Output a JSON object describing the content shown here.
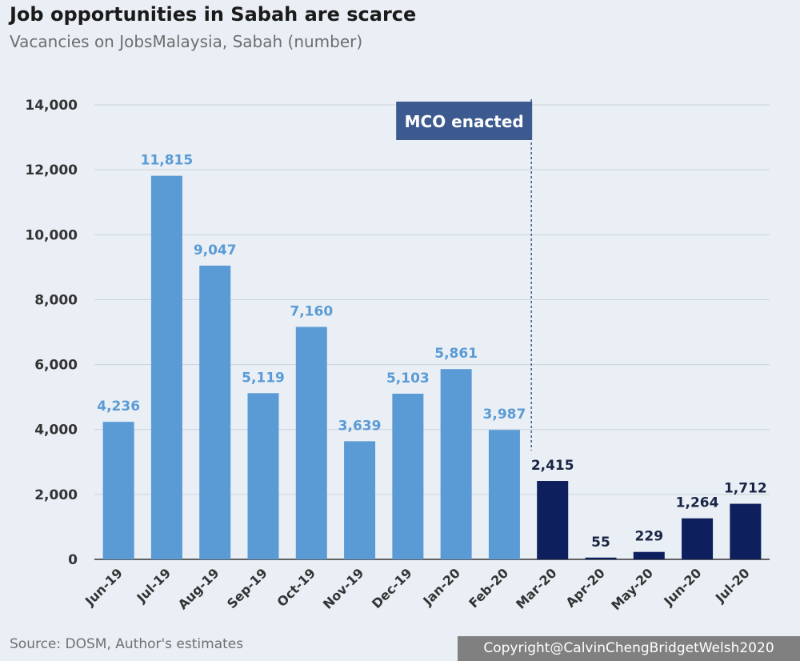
{
  "header": {
    "title": "Job opportunities in Sabah are scarce",
    "subtitle": "Vacancies on JobsMalaysia, Sabah (number)"
  },
  "footer": {
    "source": "Source: DOSM, Author's estimates",
    "copyright": "Copyright@CalvinChengBridgetWelsh2020"
  },
  "colors": {
    "pre_mco": "#5b9bd5",
    "post_mco": "#0d1f5c",
    "label_pre": "#5b9bd5",
    "label_post": "#1a2545",
    "annotation_bg": "#3c5a8f",
    "grid": "#c9d2db"
  },
  "chart_data": {
    "type": "bar",
    "title": "Job opportunities in Sabah are scarce",
    "subtitle": "Vacancies on JobsMalaysia, Sabah (number)",
    "categories": [
      "Jun-19",
      "Jul-19",
      "Aug-19",
      "Sep-19",
      "Oct-19",
      "Nov-19",
      "Dec-19",
      "Jan-20",
      "Feb-20",
      "Mar-20",
      "Apr-20",
      "May-20",
      "Jun-20",
      "Jul-20"
    ],
    "values": [
      4236,
      11815,
      9047,
      5119,
      7160,
      3639,
      5103,
      5861,
      3987,
      2415,
      55,
      229,
      1264,
      1712
    ],
    "value_labels": [
      "4,236",
      "11,815",
      "9,047",
      "5,119",
      "7,160",
      "3,639",
      "5,103",
      "5,861",
      "3,987",
      "2,415",
      "55",
      "229",
      "1,264",
      "1,712"
    ],
    "highlight_from_index": 9,
    "ylim": [
      0,
      14000
    ],
    "yticks": [
      0,
      2000,
      4000,
      6000,
      8000,
      10000,
      12000,
      14000
    ],
    "ytick_labels": [
      "0",
      "2,000",
      "4,000",
      "6,000",
      "8,000",
      "10,000",
      "12,000",
      "14,000"
    ],
    "xlabel": "",
    "ylabel": "",
    "grid": true,
    "annotation": {
      "text": "MCO enacted",
      "at_category": "Mar-20"
    }
  }
}
